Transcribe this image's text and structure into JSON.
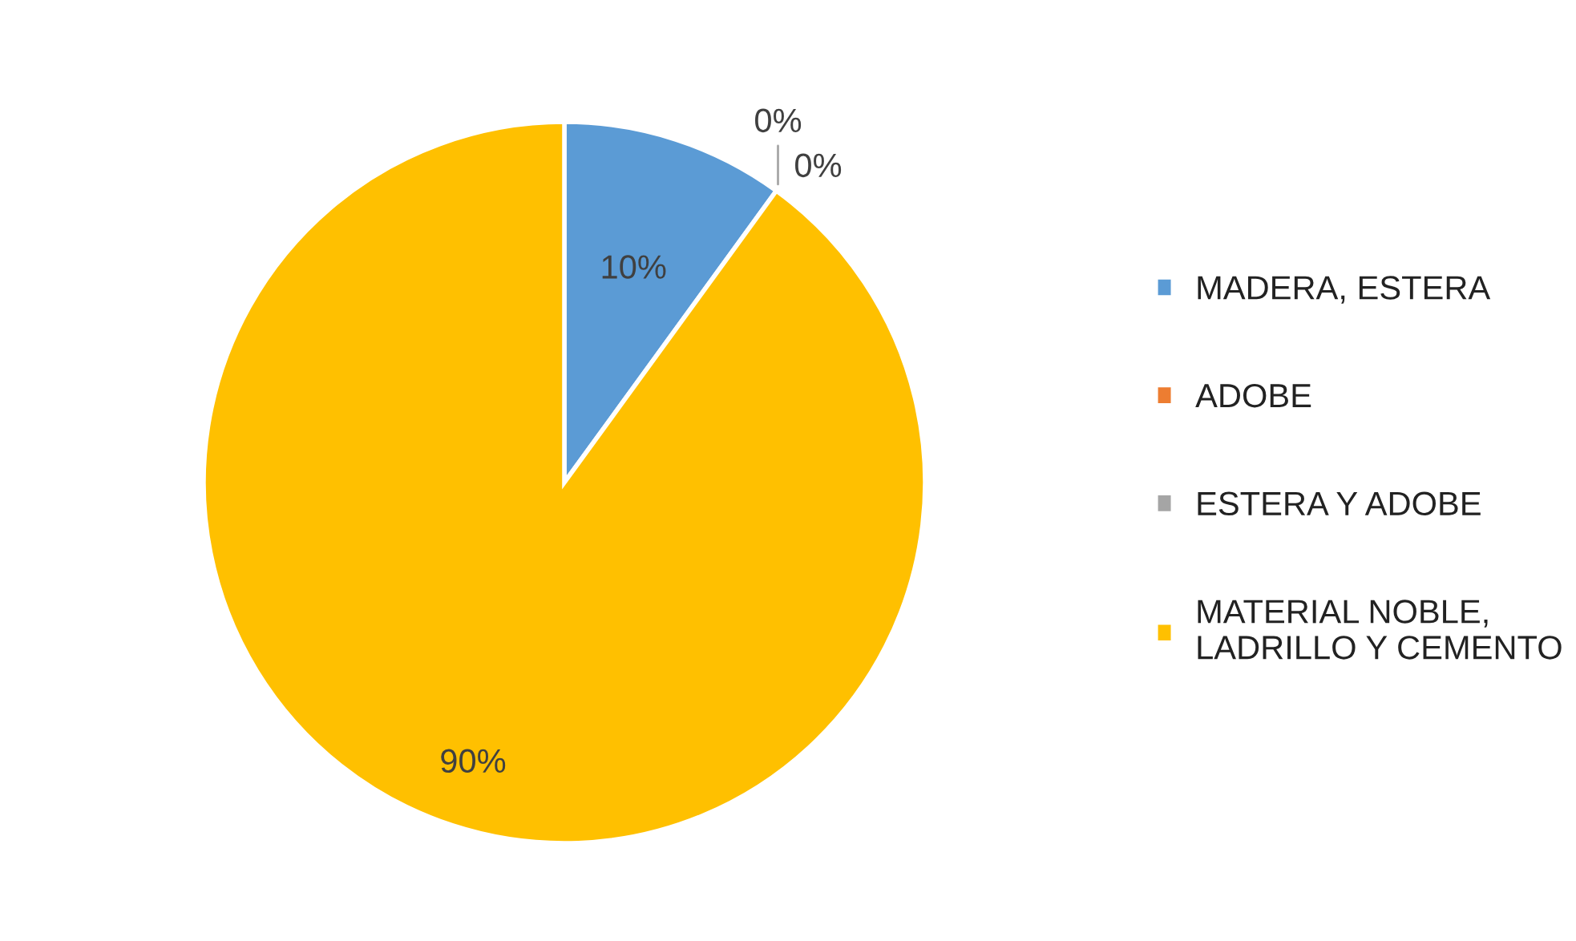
{
  "chart_data": {
    "type": "pie",
    "categories": [
      "MADERA, ESTERA",
      "ADOBE",
      "ESTERA Y ADOBE",
      "MATERIAL NOBLE,\nLADRILLO Y CEMENTO"
    ],
    "values": [
      10,
      0,
      0,
      90
    ],
    "colors": [
      "#5b9bd5",
      "#ed7d31",
      "#a5a5a5",
      "#ffc000"
    ],
    "value_labels": [
      "10%",
      "0%",
      "0%",
      "90%"
    ],
    "legend": "right"
  }
}
